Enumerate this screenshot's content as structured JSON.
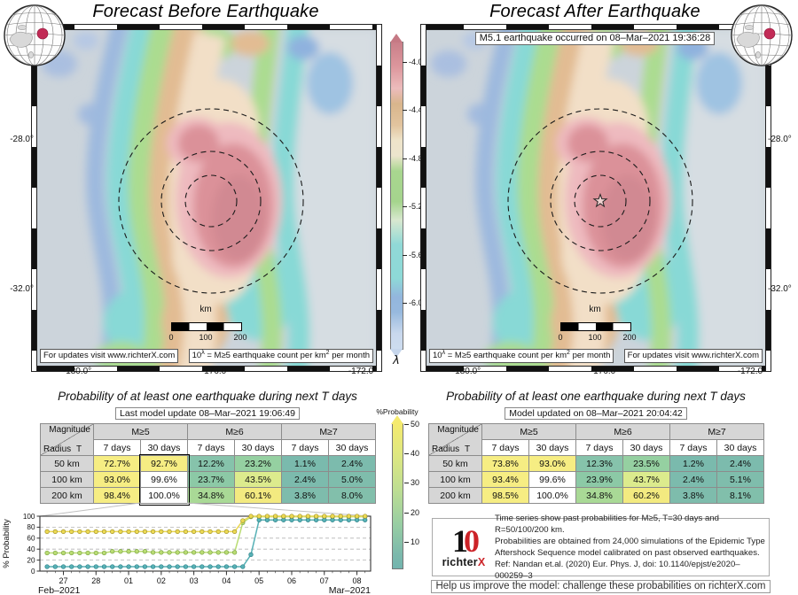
{
  "titles": {
    "left": "Forecast Before Earthquake",
    "right": "Forecast After Earthquake"
  },
  "right_subtitle": "M5.1 earthquake occurred on 08–Mar–2021 19:36:28",
  "maps": {
    "lat_labels": [
      "-28.0°",
      "-32.0°"
    ],
    "lon_labels": [
      "-180.0°",
      "-176.0°",
      "-172.0°"
    ],
    "scale_label": "km",
    "scale_ticks": [
      "0",
      "100",
      "200"
    ],
    "updates_note": "For updates visit www.richterX.com",
    "legend_note": {
      "p1": "10",
      "sup1": "λ",
      "p2": " = M≥5 earthquake count per km",
      "sup2": "2",
      "p3": " per month"
    }
  },
  "lambda_colorbar": {
    "ticks": [
      "-4.0",
      "-4.4",
      "-4.8",
      "-5.2",
      "-5.6",
      "-6.0"
    ],
    "label": "λ"
  },
  "prob_colorbar": {
    "title": "%Probability",
    "ticks": [
      "50",
      "40",
      "30",
      "20",
      "10"
    ]
  },
  "section_titles": {
    "left": "Probability of at least one earthquake during next T days",
    "right": "Probability of at least one earthquake during next T days"
  },
  "model_updates": {
    "left": "Last model update 08–Mar–2021 19:06:49",
    "right": "Model updated on 08–Mar–2021 20:04:42"
  },
  "table_header": {
    "magnitude": "Magnitude",
    "radius": "Radius",
    "t": "T",
    "mags": [
      "M≥5",
      "M≥6",
      "M≥7"
    ],
    "periods": [
      "7 days",
      "30 days"
    ]
  },
  "chart_data": [
    {
      "type": "line",
      "title": "Past probabilities for M≥5, T=30 days and R=50/100/200 km",
      "ylabel": "% Probability",
      "ylim": [
        0,
        100
      ],
      "yticks": [
        0,
        20,
        40,
        60,
        80,
        100
      ],
      "grid": "dashed-horizontal",
      "legend": "none",
      "x_axis": {
        "xlim": [
          26.28,
          36.42
        ],
        "ticks": [
          27,
          28,
          29,
          30,
          31,
          32,
          33,
          34,
          35,
          36
        ],
        "tick_labels": [
          "27",
          "28",
          "01",
          "02",
          "03",
          "04",
          "05",
          "06",
          "07",
          "08"
        ],
        "left_label": "Feb–2021",
        "right_label": "Mar–2021"
      },
      "event_x": 32.5,
      "draw_order": [
        1,
        2,
        0
      ],
      "series": [
        {
          "name": "R=200 km",
          "color": "#ecd952",
          "edge": "#a0922e",
          "x_start": 26.5,
          "dx": 0.25,
          "values": [
            72,
            72,
            72,
            72,
            72,
            72,
            72,
            72,
            72,
            72,
            72,
            72,
            72,
            72,
            72,
            72,
            72,
            72,
            72,
            72,
            72,
            72,
            72,
            72,
            92,
            100,
            100,
            100,
            100,
            100,
            100,
            100,
            100,
            100,
            100,
            100,
            100,
            100,
            100,
            100
          ]
        },
        {
          "name": "R=100 km",
          "color": "#b9dc72",
          "edge": "#7ba447",
          "x_start": 26.5,
          "dx": 0.25,
          "values": [
            33,
            33,
            33,
            33,
            33,
            33,
            33,
            33,
            36,
            36,
            36,
            36,
            36,
            34,
            34,
            34,
            34,
            34,
            34,
            34,
            34,
            34,
            34,
            34,
            88,
            99,
            99,
            99,
            99,
            99,
            99,
            99,
            99,
            99,
            99,
            99,
            99,
            99,
            99,
            99
          ]
        },
        {
          "name": "R=50 km",
          "color": "#57b1b6",
          "edge": "#2e8288",
          "x_start": 26.5,
          "dx": 0.25,
          "values": [
            8,
            8,
            8,
            8,
            8,
            8,
            8,
            8,
            8,
            8,
            8,
            8,
            8,
            8,
            8,
            8,
            8,
            8,
            8,
            8,
            8,
            8,
            8,
            8,
            8,
            30,
            93,
            93,
            93,
            93,
            93,
            93,
            93,
            93,
            93,
            93,
            93,
            93,
            93,
            93
          ]
        }
      ]
    },
    {
      "type": "table",
      "title": "Probability of at least one earthquake during next T days (before earthquake)",
      "highlight_column": "M≥5 / 30 days",
      "rows": [
        {
          "label": "50 km",
          "cells": [
            {
              "v": "72.7%",
              "bg": "#f6ed83"
            },
            {
              "v": "92.7%",
              "bg": "#f6ed83"
            },
            {
              "v": "12.2%",
              "bg": "#86c3ab"
            },
            {
              "v": "23.2%",
              "bg": "#95d0a1"
            },
            {
              "v": "1.1%",
              "bg": "#7abaad"
            },
            {
              "v": "2.4%",
              "bg": "#7cbbad"
            }
          ]
        },
        {
          "label": "100 km",
          "cells": [
            {
              "v": "93.0%",
              "bg": "#f6ed83"
            },
            {
              "v": "99.6%",
              "bg": "#ffffff"
            },
            {
              "v": "23.7%",
              "bg": "#8cc9a6"
            },
            {
              "v": "43.5%",
              "bg": "#dceb8d"
            },
            {
              "v": "2.4%",
              "bg": "#7cbbad"
            },
            {
              "v": "5.0%",
              "bg": "#7fbdac"
            }
          ]
        },
        {
          "label": "200 km",
          "cells": [
            {
              "v": "98.4%",
              "bg": "#f6ed83"
            },
            {
              "v": "100.0%",
              "bg": "#ffffff"
            },
            {
              "v": "34.8%",
              "bg": "#a9d996"
            },
            {
              "v": "60.1%",
              "bg": "#f3ea80"
            },
            {
              "v": "3.8%",
              "bg": "#7ebcac"
            },
            {
              "v": "8.0%",
              "bg": "#82bfab"
            }
          ]
        }
      ]
    },
    {
      "type": "table",
      "title": "Probability of at least one earthquake during next T days (after earthquake)",
      "rows": [
        {
          "label": "50 km",
          "cells": [
            {
              "v": "73.8%",
              "bg": "#f6ed83"
            },
            {
              "v": "93.0%",
              "bg": "#f6ed83"
            },
            {
              "v": "12.3%",
              "bg": "#86c3ab"
            },
            {
              "v": "23.5%",
              "bg": "#95d0a1"
            },
            {
              "v": "1.2%",
              "bg": "#7abaad"
            },
            {
              "v": "2.4%",
              "bg": "#7cbbad"
            }
          ]
        },
        {
          "label": "100 km",
          "cells": [
            {
              "v": "93.4%",
              "bg": "#f6ed83"
            },
            {
              "v": "99.6%",
              "bg": "#ffffff"
            },
            {
              "v": "23.9%",
              "bg": "#8cc9a6"
            },
            {
              "v": "43.7%",
              "bg": "#dceb8d"
            },
            {
              "v": "2.4%",
              "bg": "#7cbbad"
            },
            {
              "v": "5.1%",
              "bg": "#7fbdac"
            }
          ]
        },
        {
          "label": "200 km",
          "cells": [
            {
              "v": "98.5%",
              "bg": "#f6ed83"
            },
            {
              "v": "100.0%",
              "bg": "#ffffff"
            },
            {
              "v": "34.8%",
              "bg": "#a9d996"
            },
            {
              "v": "60.2%",
              "bg": "#f3ea80"
            },
            {
              "v": "3.8%",
              "bg": "#7ebcac"
            },
            {
              "v": "8.1%",
              "bg": "#81bfab"
            }
          ]
        }
      ]
    }
  ],
  "footer": {
    "logo": {
      "one": "1",
      "zero": "0",
      "brand": "richter",
      "brand_x": "X"
    },
    "info_lines": [
      "Time series show past probabilities for M≥5, T=30 days and R=50/100/200 km.",
      "Probabilities are obtained from 24,000 simulations of the Epidemic Type",
      "Aftershock Sequence model calibrated on past observed earthquakes.",
      "Ref: Nandan et.al. (2020) Eur. Phys. J, doi: 10.1140/epjst/e2020–000259–3"
    ],
    "help_note": "Help us improve the model: challenge these probabilities on richterX.com"
  }
}
